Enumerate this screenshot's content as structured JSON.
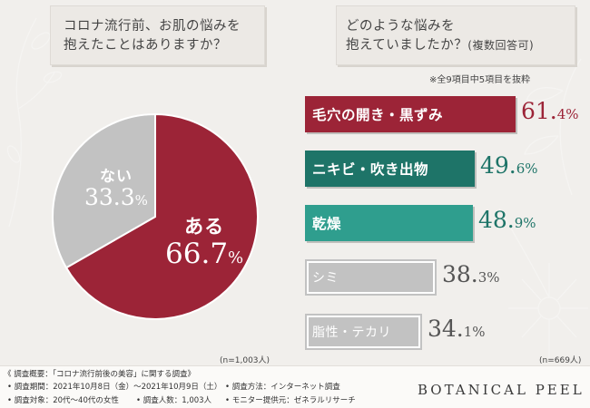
{
  "questions": {
    "left": {
      "line1": "コロナ流行前、お肌の悩みを",
      "line2": "抱えたことはありますか？"
    },
    "right": {
      "line1": "どのような悩みを",
      "line2": "抱えていましたか？",
      "line2_small": "(複数回答可)"
    }
  },
  "note": "※全9項目中5項目を抜粋",
  "chart_data": [
    {
      "type": "pie",
      "slices": [
        {
          "label": "ある",
          "value": 66.7,
          "color": "#9c2437"
        },
        {
          "label": "ない",
          "value": 33.3,
          "color": "#c2c2c2"
        }
      ],
      "sample": "(n=1,003人)"
    },
    {
      "type": "bar",
      "categories": [
        "毛穴の開き・黒ずみ",
        "ニキビ・吹き出物",
        "乾燥",
        "シミ",
        "脂性・テカリ"
      ],
      "values": [
        61.4,
        49.6,
        48.9,
        38.3,
        34.1
      ],
      "colors": [
        "#9c2437",
        "#1e7468",
        "#2f9e8e",
        "#c2c2c2",
        "#c2c2c2"
      ],
      "sample": "(n=669人)"
    }
  ],
  "pie_labels": {
    "aru": {
      "name": "ある",
      "int": "66.",
      "dec": "7",
      "unit": "%"
    },
    "nai": {
      "name": "ない",
      "int": "33.",
      "dec": "3",
      "unit": "%"
    }
  },
  "bar_pcts": [
    {
      "int": "61.",
      "dec": "4%"
    },
    {
      "int": "49.",
      "dec": "6%"
    },
    {
      "int": "48.",
      "dec": "9%"
    },
    {
      "int": "38.",
      "dec": "3%"
    },
    {
      "int": "34.",
      "dec": "1%"
    }
  ],
  "footer": {
    "title": "《 調査概要：「コロナ流行前後の美容」に関する調査》",
    "period": "• 調査期間：2021年10月8日（金）〜2021年10月9日（土）",
    "method": "• 調査方法：インターネット調査",
    "target": "• 調査対象：20代〜40代の女性",
    "count": "• 調査人数：1,003人",
    "provider": "• モニター提供元：ゼネラルリサーチ"
  },
  "brand": "BOTANICAL PEEL"
}
